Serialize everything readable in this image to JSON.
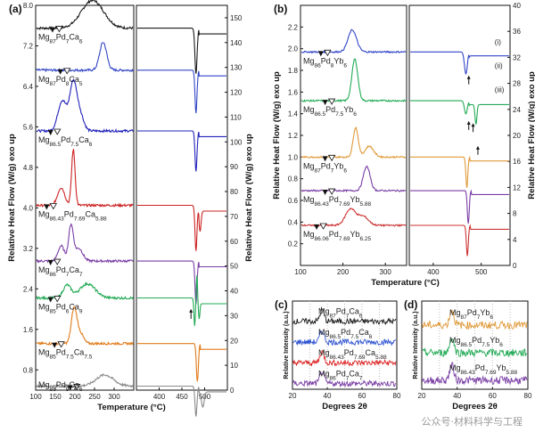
{
  "chart_data": [
    {
      "id": "a",
      "type": "line",
      "panel_label": "(a)",
      "xlabel": "Temperature (°C)",
      "ylabel_left": "Relative Heat Flow (W/g) exo up",
      "ylabel_right": "Relative Heat Flow (W/g) exo up",
      "left_ylim": [
        0.4,
        8.0
      ],
      "left_yticks": [
        "0.8",
        "1.6",
        "2.4",
        "3.2",
        "4.0",
        "4.8",
        "5.6",
        "6.4",
        "7.2",
        "8.0"
      ],
      "right_ylim": [
        0,
        155
      ],
      "right_yticks": [
        "0",
        "10",
        "20",
        "30",
        "40",
        "50",
        "60",
        "70",
        "80",
        "90",
        "100",
        "110",
        "120",
        "130",
        "140",
        "150"
      ],
      "left_xlim": [
        100,
        350
      ],
      "left_xticks": [
        "100",
        "150",
        "200",
        "250",
        "300"
      ],
      "right_xlim": [
        350,
        550
      ],
      "right_xticks": [
        "400",
        "450",
        "500"
      ],
      "series": [
        {
          "name": "Mg87Pd7Ca6",
          "label_main": "Mg",
          "label_sub1": "87",
          "label_mid1": "Pd",
          "label_sub2": "7",
          "label_mid2": "Ca",
          "label_sub3": "6",
          "color": "#1a1a1a",
          "baseline": 7.55,
          "peaks": [
            [
              245,
              0.55,
              28
            ]
          ],
          "onset": 155,
          "dips": [
            [
              481,
              -0.9,
              2.4
            ]
          ]
        },
        {
          "name": "Mg87Pd8Ca5",
          "label_main": "Mg",
          "label_sub1": "87",
          "label_mid1": "Pd",
          "label_sub2": "8",
          "label_mid2": "Ca",
          "label_sub3": "5",
          "color": "#3246c6",
          "baseline": 6.72,
          "peaks": [
            [
              272,
              0.55,
              9
            ]
          ],
          "onset": 175,
          "dips": [
            [
              481,
              -0.85,
              2.2
            ]
          ]
        },
        {
          "name": "Mg86.5Pd7.5Ca6",
          "label_main": "Mg",
          "label_sub1": "86.5",
          "label_mid1": "Pd",
          "label_sub2": "7.5",
          "label_mid2": "Ca",
          "label_sub3": "6",
          "color": "#2222bb",
          "baseline": 5.52,
          "peaks": [
            [
              168,
              0.6,
              11
            ],
            [
              196,
              0.95,
              9
            ],
            [
              214,
              0.3,
              9
            ]
          ],
          "onset": 150,
          "dips": [
            [
              481,
              -0.8,
              2.2
            ]
          ]
        },
        {
          "name": "Mg86.43Pd7.69Ca5.88",
          "label_main": "Mg",
          "label_sub1": "86.43",
          "label_mid1": "Pd",
          "label_sub2": "7.69",
          "label_mid2": "Ca",
          "label_sub3": "5.88",
          "color": "#cc2222",
          "baseline": 4.05,
          "peaks": [
            [
              165,
              0.35,
              9
            ],
            [
              196,
              1.1,
              4.5
            ]
          ],
          "onset": 140,
          "dips": [
            [
              481,
              -0.9,
              2.2
            ],
            [
              490,
              -0.4,
              2.2
            ]
          ]
        },
        {
          "name": "Mg86Pd7Ca7",
          "label_main": "Mg",
          "label_sub1": "86",
          "label_mid1": "Pd",
          "label_sub2": "7",
          "label_mid2": "Ca",
          "label_sub3": "7",
          "color": "#7a3ea5",
          "baseline": 2.95,
          "peaks": [
            [
              165,
              0.3,
              8
            ],
            [
              190,
              0.7,
              6
            ],
            [
              210,
              0.25,
              10
            ]
          ],
          "onset": 150,
          "dips": [
            [
              481,
              -0.85,
              2.2
            ]
          ]
        },
        {
          "name": "Mg85Pd6Ca9",
          "label_main": "Mg",
          "label_sub1": "85",
          "label_mid1": "Pd",
          "label_sub2": "6",
          "label_mid2": "Ca",
          "label_sub3": "9",
          "color": "#22aa55",
          "baseline": 2.22,
          "peaks": [
            [
              180,
              0.25,
              10
            ],
            [
              232,
              0.28,
              20
            ]
          ],
          "onset": 150,
          "dips": [
            [
              478,
              -0.55,
              1.6
            ],
            [
              483,
              0.45,
              1.4
            ],
            [
              488,
              -0.3,
              1.6
            ]
          ]
        },
        {
          "name": "Mg85Pd7.5Ca7.5",
          "label_main": "Mg",
          "label_sub1": "85",
          "label_mid1": "Pd",
          "label_sub2": "7.5",
          "label_mid2": "Ca",
          "label_sub3": "7.5",
          "color": "#e07b1a",
          "baseline": 1.32,
          "peaks": [
            [
              198,
              0.7,
              7
            ],
            [
              214,
              0.2,
              8
            ]
          ],
          "onset": 160,
          "dips": [
            [
              484,
              -0.75,
              2.2
            ]
          ]
        },
        {
          "name": "Mg85Pd9Ca6",
          "label_main": "Mg",
          "label_sub1": "85",
          "label_mid1": "Pd",
          "label_sub2": "9",
          "label_mid2": "Ca",
          "label_sub3": "6",
          "color": "#8a8a8a",
          "baseline": 0.48,
          "peaks": [
            [
              276,
              0.22,
              22
            ]
          ],
          "onset": 200,
          "dips": [
            [
              481,
              -0.6,
              2.2
            ],
            [
              496,
              -0.3,
              3
            ]
          ]
        }
      ]
    },
    {
      "id": "b",
      "type": "line",
      "panel_label": "(b)",
      "xlabel": "Temperature (°C)",
      "ylabel_left": "Relative Heat Flow (W/g) exo up",
      "ylabel_right": "Relative Heat Flow (W/g) exo up",
      "left_ylim": [
        0.0,
        2.4
      ],
      "left_yticks": [
        "0.2",
        "0.4",
        "0.6",
        "0.8",
        "1.0",
        "1.2",
        "1.4",
        "1.6",
        "1.8",
        "2.0",
        "2.2"
      ],
      "right_ylim": [
        0,
        40
      ],
      "right_yticks": [
        "0",
        "4",
        "8",
        "12",
        "16",
        "20",
        "24",
        "28",
        "32",
        "36",
        "40"
      ],
      "left_xlim": [
        100,
        350
      ],
      "left_xticks": [
        "100",
        "200",
        "300"
      ],
      "right_xlim": [
        350,
        560
      ],
      "right_xticks": [
        "400",
        "500"
      ],
      "annotations": [
        "(i)",
        "(ii)",
        "(iii)"
      ],
      "series": [
        {
          "name": "Mg86Pd8Yb6",
          "label_main": "Mg",
          "label_sub1": "86",
          "label_mid1": "Pd",
          "label_sub2": "8",
          "label_mid2": "Yb",
          "label_sub3": "6",
          "color": "#3246c6",
          "baseline": 1.97,
          "peaks": [
            [
              222,
              0.2,
              10
            ]
          ],
          "onset": 160,
          "dips": [
            [
              468,
              -0.2,
              3
            ]
          ]
        },
        {
          "name": "Mg86.5Pd7.5Yb6",
          "label_main": "Mg",
          "label_sub1": "86.5",
          "label_mid1": "Pd",
          "label_sub2": "7.5",
          "label_mid2": "Yb",
          "label_sub3": "6",
          "color": "#22aa55",
          "baseline": 1.52,
          "peaks": [
            [
              228,
              0.38,
              7
            ]
          ],
          "onset": 170,
          "dips": [
            [
              468,
              -0.12,
              3
            ],
            [
              489,
              -0.18,
              2
            ]
          ]
        },
        {
          "name": "Mg87Pd7Yb6",
          "label_main": "Mg",
          "label_sub1": "87",
          "label_mid1": "Pd",
          "label_sub2": "7",
          "label_mid2": "Yb",
          "label_sub3": "6",
          "color": "#e09a3a",
          "baseline": 1.0,
          "peaks": [
            [
              230,
              0.27,
              6
            ],
            [
              262,
              0.1,
              10
            ]
          ],
          "onset": 170,
          "dips": [
            [
              470,
              -0.28,
              2
            ]
          ]
        },
        {
          "name": "Mg86.43Pd7.69Yb5.88",
          "label_main": "Mg",
          "label_sub1": "86.43",
          "label_mid1": "Pd",
          "label_sub2": "7.69",
          "label_mid2": "Yb",
          "label_sub3": "5.88",
          "color": "#7a3ea5",
          "baseline": 0.69,
          "peaks": [
            [
              256,
              0.22,
              8
            ]
          ],
          "onset": 170,
          "dips": [
            [
              473,
              -0.3,
              2
            ]
          ]
        },
        {
          "name": "Mg86.06Pd7.69Yb6.25",
          "label_main": "Mg",
          "label_sub1": "86.06",
          "label_mid1": "Pd",
          "label_sub2": "7.69",
          "label_mid2": "Yb",
          "label_sub3": "6.25",
          "color": "#cc3333",
          "baseline": 0.37,
          "peaks": [
            [
              218,
              0.15,
              12
            ],
            [
              248,
              0.08,
              12
            ]
          ],
          "onset": 150,
          "dips": [
            [
              471,
              -0.28,
              2
            ]
          ]
        }
      ]
    },
    {
      "id": "c",
      "type": "line",
      "panel_label": "(c)",
      "xlabel": "Degrees 2θ",
      "ylabel": "Relative Intensity (a.u.)",
      "xlim": [
        20,
        80
      ],
      "xticks": [
        "20",
        "40",
        "60",
        "80"
      ],
      "peak_2theta": 37,
      "series": [
        {
          "name": "Mg87Pd7Ca6",
          "label_main": "Mg",
          "label_sub1": "87",
          "label_mid1": "Pd",
          "label_sub2": "7",
          "label_mid2": "Ca",
          "label_sub3": "6",
          "color": "#1a1a1a"
        },
        {
          "name": "Mg86.5Pd7.5Ca6",
          "label_main": "Mg",
          "label_sub1": "86.5",
          "label_mid1": "Pd",
          "label_sub2": "7.5",
          "label_mid2": "Ca",
          "label_sub3": "6",
          "color": "#2a50d0"
        },
        {
          "name": "Mg86.43Pd7.69Ca5.88",
          "label_main": "Mg",
          "label_sub1": "86.43",
          "label_mid1": "Pd",
          "label_sub2": "7.69",
          "label_mid2": "Ca",
          "label_sub3": "5.88",
          "color": "#dd2222"
        },
        {
          "name": "Mg86Pd7Ca7",
          "label_main": "Mg",
          "label_sub1": "86",
          "label_mid1": "Pd",
          "label_sub2": "7",
          "label_mid2": "Ca",
          "label_sub3": "7",
          "color": "#7a3ea5"
        }
      ]
    },
    {
      "id": "d",
      "type": "line",
      "panel_label": "(d)",
      "xlabel": "Degrees 2θ",
      "ylabel": "Relative Intensity (a.u.)",
      "xlim": [
        20,
        80
      ],
      "xticks": [
        "20",
        "40",
        "60",
        "80"
      ],
      "peak_2theta": 37,
      "series": [
        {
          "name": "Mg87Pd7Yb6",
          "label_main": "Mg",
          "label_sub1": "87",
          "label_mid1": "Pd",
          "label_sub2": "7",
          "label_mid2": "Yb",
          "label_sub3": "6",
          "color": "#e09a3a"
        },
        {
          "name": "Mg86.5Pd7.5Yb6",
          "label_main": "Mg",
          "label_sub1": "86.5",
          "label_mid1": "Pd",
          "label_sub2": "7.5",
          "label_mid2": "Yb",
          "label_sub3": "6",
          "color": "#22aa55"
        },
        {
          "name": "Mg86.43Pd7.69Yb5.88",
          "label_main": "Mg",
          "label_sub1": "86.43",
          "label_mid1": "Pd",
          "label_sub2": "7.69",
          "label_mid2": "Yb",
          "label_sub3": "5.88",
          "color": "#7a3ea5"
        }
      ]
    }
  ],
  "watermark": "公众号·材料科学与工程"
}
